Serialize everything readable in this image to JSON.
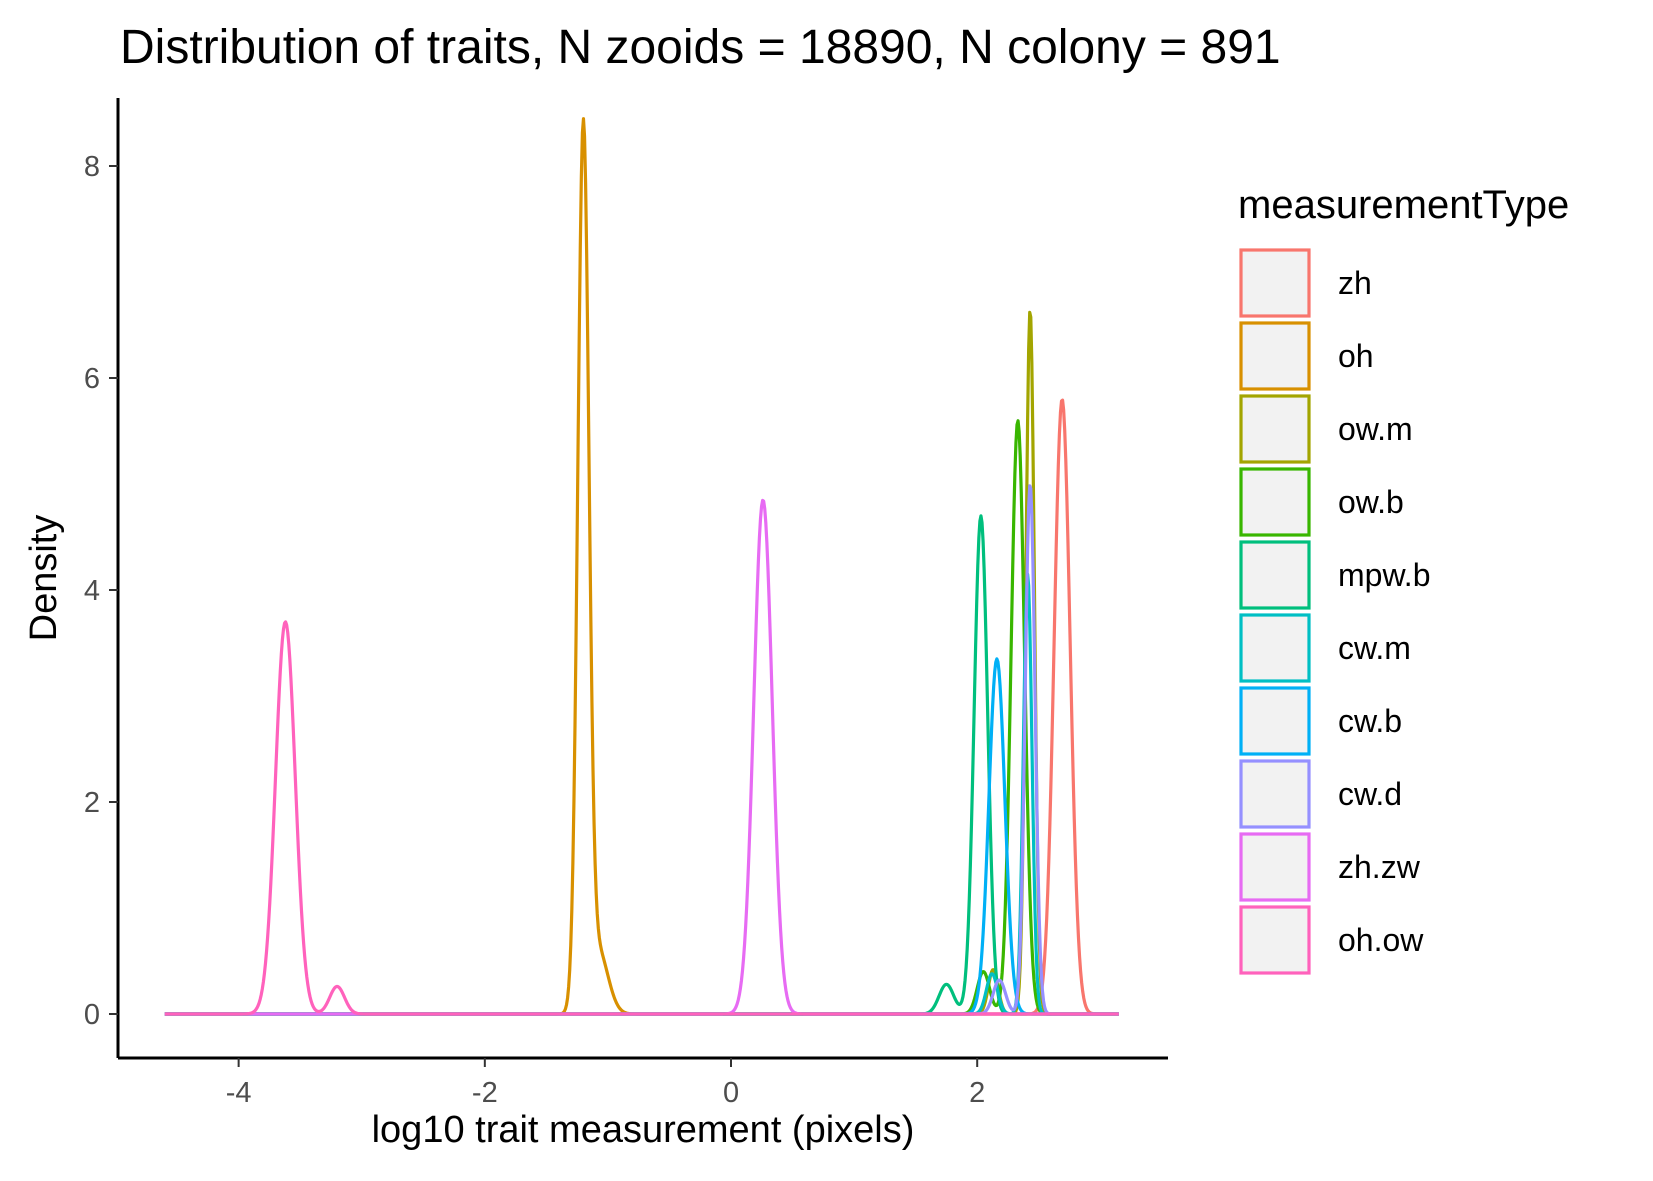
{
  "chart_data": {
    "type": "line",
    "title": "Distribution of traits, N zooids = 18890, N colony = 891",
    "xlabel": "log10 trait measurement (pixels)",
    "ylabel": "Density",
    "xlim": [
      -4.6,
      3.15
    ],
    "ylim": [
      0,
      8.3
    ],
    "x_ticks": [
      -4,
      -2,
      0,
      2
    ],
    "x_tick_labels": [
      "-4",
      "-2",
      "0",
      "2"
    ],
    "y_ticks": [
      0,
      2,
      4,
      6,
      8
    ],
    "y_tick_labels": [
      "0",
      "2",
      "4",
      "6",
      "8"
    ],
    "grid": false,
    "legend": {
      "title": "measurementType",
      "position": "right"
    },
    "series": [
      {
        "name": "zh",
        "color": "#F8766D",
        "peaks": [
          [
            2.69,
            5.8,
            0.065
          ]
        ]
      },
      {
        "name": "oh",
        "color": "#D89000",
        "peaks": [
          [
            -1.2,
            8.25,
            0.045
          ],
          [
            -1.08,
            0.6,
            0.08
          ]
        ]
      },
      {
        "name": "ow.m",
        "color": "#A3A500",
        "peaks": [
          [
            2.43,
            6.65,
            0.035
          ],
          [
            2.13,
            0.42,
            0.04
          ]
        ]
      },
      {
        "name": "ow.b",
        "color": "#39B600",
        "peaks": [
          [
            2.33,
            5.6,
            0.055
          ],
          [
            2.05,
            0.4,
            0.05
          ]
        ]
      },
      {
        "name": "mpw.b",
        "color": "#00BF7D",
        "peaks": [
          [
            2.03,
            4.7,
            0.055
          ],
          [
            1.75,
            0.28,
            0.06
          ]
        ]
      },
      {
        "name": "cw.m",
        "color": "#00BFC4",
        "peaks": [
          [
            2.41,
            4.15,
            0.035
          ],
          [
            2.12,
            0.38,
            0.045
          ]
        ]
      },
      {
        "name": "cw.b",
        "color": "#00B0F6",
        "peaks": [
          [
            2.16,
            3.35,
            0.065
          ]
        ]
      },
      {
        "name": "cw.d",
        "color": "#9590FF",
        "peaks": [
          [
            2.43,
            5.0,
            0.04
          ],
          [
            2.18,
            0.32,
            0.05
          ]
        ]
      },
      {
        "name": "zh.zw",
        "color": "#E76BF3",
        "peaks": [
          [
            0.26,
            4.85,
            0.075
          ]
        ]
      },
      {
        "name": "oh.ow",
        "color": "#FF62BC",
        "peaks": [
          [
            -3.62,
            3.7,
            0.08
          ],
          [
            -3.2,
            0.26,
            0.06
          ]
        ]
      }
    ]
  }
}
